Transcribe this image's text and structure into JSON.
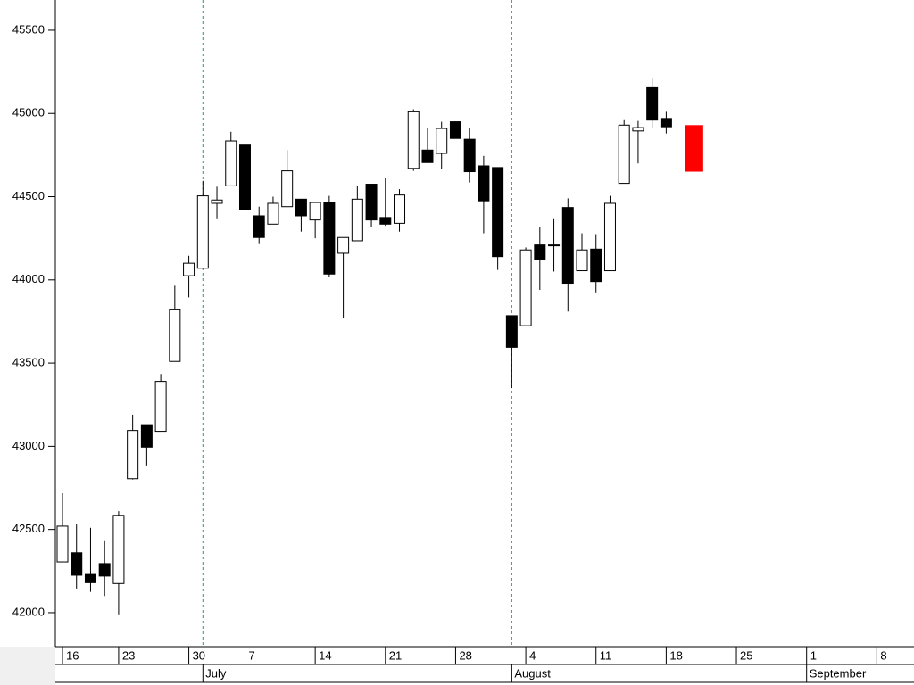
{
  "chart_data": {
    "type": "candlestick",
    "x": [
      "06-16",
      "06-17",
      "06-18",
      "06-20",
      "06-23",
      "06-24",
      "06-25",
      "06-26",
      "06-27",
      "06-30",
      "07-01",
      "07-02",
      "07-03",
      "07-07",
      "07-08",
      "07-09",
      "07-10",
      "07-11",
      "07-14",
      "07-15",
      "07-16",
      "07-17",
      "07-18",
      "07-21",
      "07-22",
      "07-23",
      "07-24",
      "07-25",
      "07-28",
      "07-29",
      "07-30",
      "07-31",
      "08-01",
      "08-04",
      "08-05",
      "08-06",
      "08-07",
      "08-08",
      "08-11",
      "08-12",
      "08-13",
      "08-14",
      "08-15",
      "08-18"
    ],
    "open": [
      42305,
      42360,
      42235,
      42295,
      42175,
      42805,
      43130,
      43090,
      43510,
      44025,
      44070,
      44460,
      44565,
      44810,
      44385,
      44335,
      44440,
      44485,
      44360,
      44465,
      44160,
      44235,
      44575,
      44375,
      44340,
      44670,
      44780,
      44760,
      44950,
      44845,
      44685,
      44675,
      43785,
      43725,
      44210,
      44210,
      44435,
      44055,
      44185,
      44055,
      44580,
      44895,
      45160,
      44970
    ],
    "high": [
      42718,
      42530,
      42510,
      42435,
      42610,
      43190,
      43130,
      43435,
      43965,
      44145,
      44595,
      44560,
      44890,
      44810,
      44440,
      44500,
      44780,
      44485,
      44465,
      44505,
      44255,
      44565,
      44575,
      44610,
      44545,
      45025,
      44915,
      44950,
      44950,
      44915,
      44745,
      44675,
      43785,
      44195,
      44315,
      44370,
      44490,
      44280,
      44275,
      44505,
      44965,
      44955,
      45210,
      45010
    ],
    "low": [
      42305,
      42145,
      42125,
      42100,
      41990,
      42800,
      42885,
      43090,
      43510,
      43895,
      44070,
      44370,
      44565,
      44170,
      44215,
      44335,
      44440,
      44290,
      44250,
      44015,
      43770,
      44235,
      44315,
      44325,
      44290,
      44655,
      44705,
      44665,
      44850,
      44585,
      44280,
      44060,
      43350,
      43725,
      43940,
      44050,
      43810,
      44055,
      43925,
      44055,
      44580,
      44700,
      44915,
      44880
    ],
    "close": [
      42520,
      42225,
      42180,
      42220,
      42585,
      43095,
      42995,
      43390,
      43820,
      44100,
      44505,
      44480,
      44835,
      44420,
      44255,
      44460,
      44655,
      44385,
      44465,
      44035,
      44255,
      44485,
      44360,
      44335,
      44510,
      45010,
      44705,
      44910,
      44850,
      44650,
      44475,
      44140,
      43595,
      44180,
      44125,
      44210,
      43980,
      44180,
      43990,
      44460,
      44930,
      44915,
      44960,
      44920
    ],
    "projection": {
      "x": "08-20",
      "upper": 44930,
      "lower": 44650,
      "color": "#ff0000"
    },
    "ylim": [
      41796,
      45682
    ],
    "yticks": [
      42000,
      42500,
      43000,
      43500,
      44000,
      44500,
      45000,
      45500
    ],
    "xticks": [
      {
        "value": "06-16",
        "label": "16"
      },
      {
        "value": "06-23",
        "label": "23"
      },
      {
        "value": "06-30",
        "label": "30"
      },
      {
        "value": "07-07",
        "label": "7"
      },
      {
        "value": "07-14",
        "label": "14"
      },
      {
        "value": "07-21",
        "label": "21"
      },
      {
        "value": "07-28",
        "label": "28"
      },
      {
        "value": "08-04",
        "label": "4"
      },
      {
        "value": "08-11",
        "label": "11"
      },
      {
        "value": "08-18",
        "label": "18"
      },
      {
        "value": "08-25",
        "label": "25"
      },
      {
        "value": "09-01",
        "label": "1"
      },
      {
        "value": "09-08",
        "label": "8"
      }
    ],
    "month_ticks": [
      {
        "value": "07-01",
        "label": "July"
      },
      {
        "value": "08-01",
        "label": "August"
      },
      {
        "value": "09-01",
        "label": "September"
      }
    ]
  }
}
